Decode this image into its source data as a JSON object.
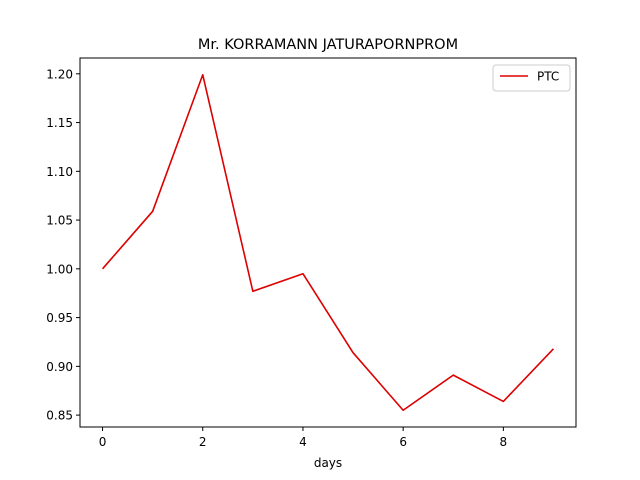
{
  "chart_data": {
    "type": "line",
    "title": "Mr. KORRAMANN JATURAPORNPROM",
    "xlabel": "days",
    "ylabel": "",
    "x": [
      0,
      1,
      2,
      3,
      4,
      5,
      6,
      7,
      8,
      9
    ],
    "series": [
      {
        "name": "PTC",
        "color": "#dd0000",
        "values": [
          1.0,
          1.059,
          1.199,
          0.977,
          0.995,
          0.914,
          0.855,
          0.891,
          0.864,
          0.918
        ]
      }
    ],
    "xlim": [
      -0.45,
      9.45
    ],
    "ylim": [
      0.8378,
      1.2162
    ],
    "xticks": [
      0,
      2,
      4,
      6,
      8
    ],
    "xtick_labels": [
      "0",
      "2",
      "4",
      "6",
      "8"
    ],
    "yticks": [
      0.85,
      0.9,
      0.95,
      1.0,
      1.05,
      1.1,
      1.15,
      1.2
    ],
    "ytick_labels": [
      "0.85",
      "0.90",
      "0.95",
      "1.00",
      "1.05",
      "1.10",
      "1.15",
      "1.20"
    ],
    "grid": false,
    "legend_position": "top-right"
  }
}
